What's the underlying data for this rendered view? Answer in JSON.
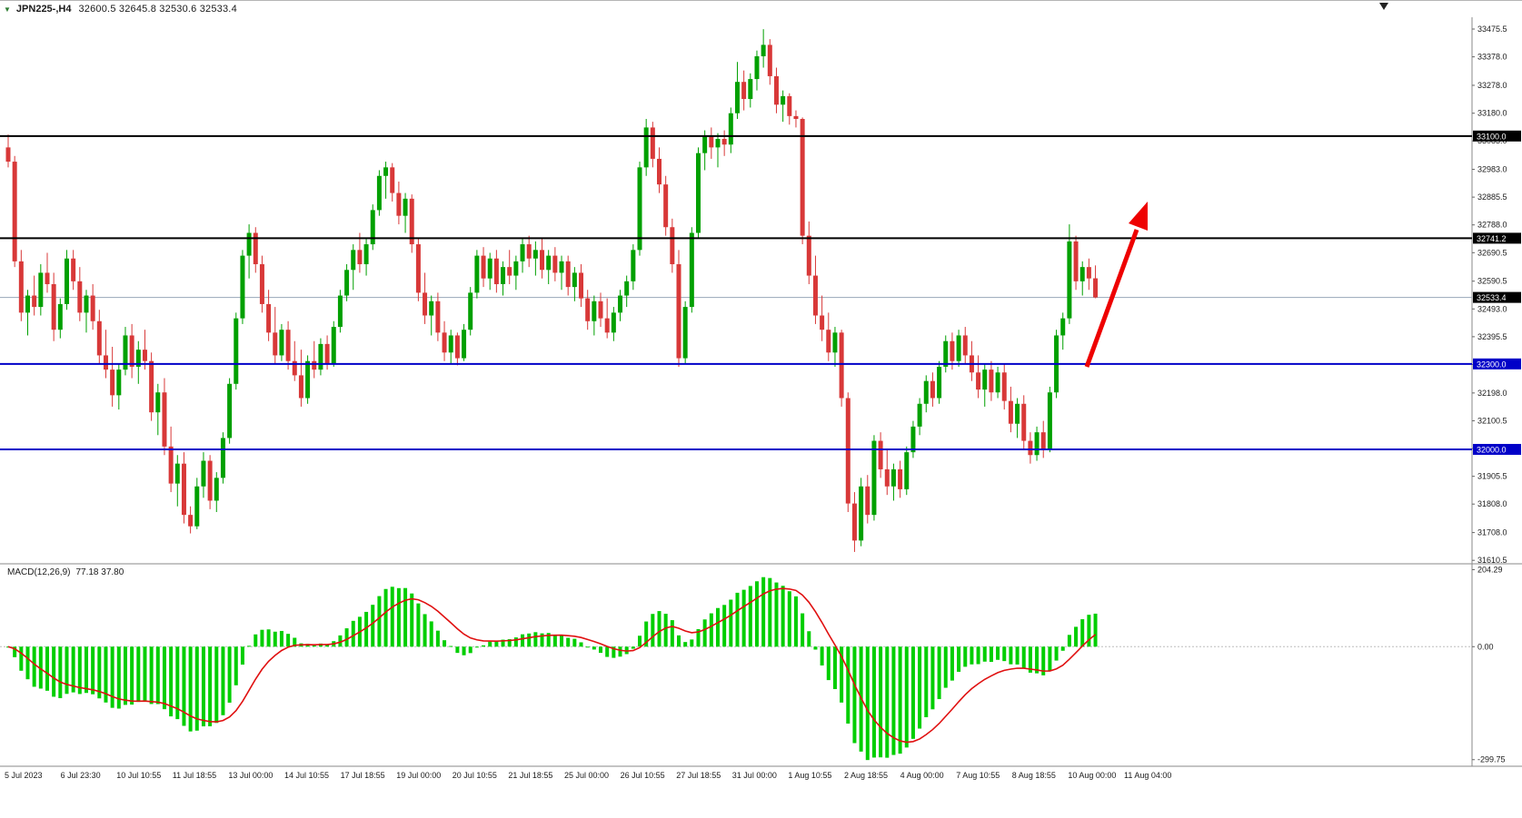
{
  "header": {
    "arrow": "▼",
    "title": "JPN225-,H4",
    "ohlc": "32600.5 32645.8 32530.6 32533.4"
  },
  "colors": {
    "up": "#00A000",
    "down": "#D83838",
    "hist": "#00CE00",
    "signal": "#E01010",
    "blue_line": "#0000C8",
    "black_line": "#000000",
    "bid_line": "#97A6B8",
    "axis_text": "#1a1a1a",
    "label_text": "#FFFFFF",
    "separator": "#8a8a8a"
  },
  "chart_data": {
    "type": "candlestick",
    "title": "JPN225-,H4",
    "indicator": "MACD(12,26,9)",
    "bid": {
      "price": 32533.4,
      "label": "32533.4"
    },
    "horizontal_lines": [
      {
        "price": 33100.0,
        "color": "#000000"
      },
      {
        "price": 32741.2,
        "color": "#000000"
      },
      {
        "price": 32300.0,
        "color": "#0000C8"
      },
      {
        "price": 32000.0,
        "color": "#0000C8"
      }
    ],
    "price_line_labels": [
      {
        "text": "33100.0",
        "price": 33100.0,
        "bg": "#000000"
      },
      {
        "text": "32741.2",
        "price": 32741.2,
        "bg": "#000000"
      },
      {
        "text": "32533.4",
        "price": 32533.4,
        "bg": "#000000"
      },
      {
        "text": "32300.0",
        "price": 32300.0,
        "bg": "#0000C8"
      },
      {
        "text": "32000.0",
        "price": 32000.0,
        "bg": "#0000C8"
      }
    ],
    "price_axis": {
      "tick_labels": [
        "33475.5",
        "33378.0",
        "33278.0",
        "33180.0",
        "33083.0",
        "32983.0",
        "32885.5",
        "32788.0",
        "32690.5",
        "32590.5",
        "32493.0",
        "32395.5",
        "32298.0",
        "32198.0",
        "32100.5",
        "32003.0",
        "31905.5",
        "31808.0",
        "31708.0",
        "31610.5"
      ]
    },
    "x_axis": {
      "labels": [
        "5 Jul 2023",
        "6 Jul 23:30",
        "10 Jul 10:55",
        "11 Jul 18:55",
        "13 Jul 00:00",
        "14 Jul 10:55",
        "17 Jul 18:55",
        "19 Jul 00:00",
        "20 Jul 10:55",
        "21 Jul 18:55",
        "25 Jul 00:00",
        "26 Jul 10:55",
        "27 Jul 18:55",
        "31 Jul 00:00",
        "1 Aug 10:55",
        "2 Aug 18:55",
        "4 Aug 00:00",
        "7 Aug 10:55",
        "8 Aug 18:55",
        "10 Aug 00:00",
        "11 Aug 04:00"
      ]
    },
    "macd": {
      "label": "MACD(12,26,9)",
      "current_values": "77.18 37.80",
      "axis_labels": [
        {
          "text": "204.29",
          "value": 204.29
        },
        {
          "text": "0.00",
          "value": 0
        },
        {
          "text": "-299.75",
          "value": -299.75
        }
      ]
    },
    "annotation": {
      "type": "arrow",
      "direction": "up-right",
      "color": "#EE0000"
    },
    "candles": [
      [
        33060,
        33105,
        32990,
        33010
      ],
      [
        33010,
        33030,
        32640,
        32660
      ],
      [
        32660,
        32700,
        32450,
        32480
      ],
      [
        32480,
        32560,
        32400,
        32540
      ],
      [
        32540,
        32610,
        32470,
        32500
      ],
      [
        32500,
        32650,
        32470,
        32620
      ],
      [
        32620,
        32690,
        32550,
        32580
      ],
      [
        32580,
        32620,
        32380,
        32420
      ],
      [
        32420,
        32530,
        32390,
        32510
      ],
      [
        32510,
        32700,
        32490,
        32670
      ],
      [
        32670,
        32700,
        32560,
        32590
      ],
      [
        32590,
        32640,
        32450,
        32480
      ],
      [
        32480,
        32560,
        32410,
        32540
      ],
      [
        32540,
        32580,
        32420,
        32450
      ],
      [
        32450,
        32490,
        32300,
        32330
      ],
      [
        32330,
        32420,
        32250,
        32280
      ],
      [
        32280,
        32360,
        32150,
        32190
      ],
      [
        32190,
        32300,
        32140,
        32280
      ],
      [
        32280,
        32430,
        32260,
        32400
      ],
      [
        32400,
        32440,
        32250,
        32290
      ],
      [
        32290,
        32380,
        32230,
        32350
      ],
      [
        32350,
        32420,
        32280,
        32310
      ],
      [
        32310,
        32340,
        32100,
        32130
      ],
      [
        32130,
        32230,
        32050,
        32200
      ],
      [
        32200,
        32250,
        31980,
        32010
      ],
      [
        32010,
        32080,
        31850,
        31880
      ],
      [
        31880,
        31980,
        31800,
        31950
      ],
      [
        31950,
        31990,
        31740,
        31770
      ],
      [
        31770,
        31800,
        31705,
        31730
      ],
      [
        31730,
        31900,
        31720,
        31870
      ],
      [
        31870,
        31990,
        31830,
        31960
      ],
      [
        31960,
        31980,
        31790,
        31820
      ],
      [
        31820,
        31920,
        31780,
        31900
      ],
      [
        31900,
        32060,
        31880,
        32040
      ],
      [
        32040,
        32250,
        32020,
        32230
      ],
      [
        32230,
        32480,
        32210,
        32460
      ],
      [
        32460,
        32700,
        32440,
        32680
      ],
      [
        32680,
        32790,
        32600,
        32760
      ],
      [
        32760,
        32780,
        32620,
        32650
      ],
      [
        32650,
        32680,
        32480,
        32510
      ],
      [
        32510,
        32560,
        32380,
        32410
      ],
      [
        32410,
        32500,
        32300,
        32330
      ],
      [
        32330,
        32440,
        32310,
        32420
      ],
      [
        32420,
        32450,
        32280,
        32310
      ],
      [
        32310,
        32380,
        32240,
        32260
      ],
      [
        32260,
        32350,
        32150,
        32180
      ],
      [
        32180,
        32330,
        32160,
        32310
      ],
      [
        32310,
        32380,
        32250,
        32280
      ],
      [
        32280,
        32390,
        32260,
        32370
      ],
      [
        32370,
        32400,
        32280,
        32300
      ],
      [
        32300,
        32450,
        32290,
        32430
      ],
      [
        32430,
        32560,
        32410,
        32540
      ],
      [
        32540,
        32650,
        32520,
        32630
      ],
      [
        32630,
        32720,
        32560,
        32700
      ],
      [
        32700,
        32760,
        32620,
        32650
      ],
      [
        32650,
        32740,
        32610,
        32720
      ],
      [
        32720,
        32860,
        32700,
        32840
      ],
      [
        32840,
        32980,
        32820,
        32960
      ],
      [
        32960,
        33010,
        32880,
        32990
      ],
      [
        32990,
        33005,
        32870,
        32900
      ],
      [
        32900,
        32940,
        32790,
        32820
      ],
      [
        32820,
        32900,
        32760,
        32880
      ],
      [
        32880,
        32895,
        32690,
        32720
      ],
      [
        32720,
        32740,
        32520,
        32550
      ],
      [
        32550,
        32620,
        32440,
        32470
      ],
      [
        32470,
        32540,
        32400,
        32520
      ],
      [
        32520,
        32550,
        32380,
        32410
      ],
      [
        32410,
        32450,
        32310,
        32340
      ],
      [
        32340,
        32420,
        32300,
        32400
      ],
      [
        32400,
        32410,
        32295,
        32320
      ],
      [
        32320,
        32440,
        32310,
        32420
      ],
      [
        32420,
        32570,
        32400,
        32550
      ],
      [
        32550,
        32700,
        32530,
        32680
      ],
      [
        32680,
        32710,
        32570,
        32600
      ],
      [
        32600,
        32690,
        32560,
        32670
      ],
      [
        32670,
        32700,
        32550,
        32580
      ],
      [
        32580,
        32660,
        32540,
        32640
      ],
      [
        32640,
        32700,
        32580,
        32610
      ],
      [
        32610,
        32680,
        32560,
        32660
      ],
      [
        32660,
        32740,
        32620,
        32720
      ],
      [
        32720,
        32750,
        32640,
        32670
      ],
      [
        32670,
        32730,
        32610,
        32700
      ],
      [
        32700,
        32740,
        32600,
        32630
      ],
      [
        32630,
        32700,
        32580,
        32680
      ],
      [
        32680,
        32710,
        32590,
        32620
      ],
      [
        32620,
        32680,
        32560,
        32660
      ],
      [
        32660,
        32680,
        32540,
        32570
      ],
      [
        32570,
        32640,
        32520,
        32620
      ],
      [
        32620,
        32650,
        32500,
        32530
      ],
      [
        32530,
        32560,
        32420,
        32450
      ],
      [
        32450,
        32540,
        32400,
        32520
      ],
      [
        32520,
        32550,
        32430,
        32460
      ],
      [
        32460,
        32530,
        32390,
        32410
      ],
      [
        32410,
        32500,
        32380,
        32480
      ],
      [
        32480,
        32560,
        32450,
        32540
      ],
      [
        32540,
        32610,
        32500,
        32590
      ],
      [
        32590,
        32720,
        32560,
        32700
      ],
      [
        32700,
        33010,
        32680,
        32990
      ],
      [
        32990,
        33160,
        32960,
        33130
      ],
      [
        33130,
        33150,
        32990,
        33020
      ],
      [
        33020,
        33060,
        32900,
        32930
      ],
      [
        32930,
        32960,
        32750,
        32780
      ],
      [
        32780,
        32810,
        32620,
        32650
      ],
      [
        32650,
        32700,
        32290,
        32320
      ],
      [
        32320,
        32520,
        32300,
        32500
      ],
      [
        32500,
        32780,
        32480,
        32760
      ],
      [
        32760,
        33060,
        32740,
        33040
      ],
      [
        33040,
        33120,
        32980,
        33100
      ],
      [
        33100,
        33130,
        33020,
        33060
      ],
      [
        33060,
        33110,
        32990,
        33090
      ],
      [
        33090,
        33120,
        33030,
        33070
      ],
      [
        33070,
        33200,
        33040,
        33180
      ],
      [
        33180,
        33360,
        33160,
        33290
      ],
      [
        33290,
        33330,
        33190,
        33230
      ],
      [
        33230,
        33320,
        33200,
        33300
      ],
      [
        33300,
        33400,
        33260,
        33380
      ],
      [
        33380,
        33475,
        33340,
        33420
      ],
      [
        33420,
        33440,
        33280,
        33310
      ],
      [
        33310,
        33340,
        33180,
        33210
      ],
      [
        33210,
        33260,
        33150,
        33240
      ],
      [
        33240,
        33250,
        33140,
        33170
      ],
      [
        33170,
        33190,
        33130,
        33160
      ],
      [
        33160,
        33165,
        32720,
        32750
      ],
      [
        32750,
        32800,
        32580,
        32610
      ],
      [
        32610,
        32680,
        32440,
        32470
      ],
      [
        32470,
        32540,
        32380,
        32420
      ],
      [
        32420,
        32480,
        32310,
        32340
      ],
      [
        32340,
        32430,
        32290,
        32410
      ],
      [
        32410,
        32420,
        32150,
        32180
      ],
      [
        32180,
        32200,
        31780,
        31810
      ],
      [
        31810,
        31850,
        31640,
        31680
      ],
      [
        31680,
        31900,
        31660,
        31870
      ],
      [
        31870,
        31910,
        31740,
        31770
      ],
      [
        31770,
        32050,
        31750,
        32030
      ],
      [
        32030,
        32060,
        31900,
        31930
      ],
      [
        31930,
        32000,
        31840,
        31870
      ],
      [
        31870,
        31950,
        31820,
        31930
      ],
      [
        31930,
        31960,
        31830,
        31860
      ],
      [
        31860,
        32010,
        31840,
        31990
      ],
      [
        31990,
        32100,
        31970,
        32080
      ],
      [
        32080,
        32180,
        32050,
        32160
      ],
      [
        32160,
        32260,
        32130,
        32240
      ],
      [
        32240,
        32270,
        32150,
        32180
      ],
      [
        32180,
        32310,
        32160,
        32290
      ],
      [
        32290,
        32400,
        32270,
        32380
      ],
      [
        32380,
        32410,
        32280,
        32310
      ],
      [
        32310,
        32420,
        32290,
        32400
      ],
      [
        32400,
        32430,
        32300,
        32330
      ],
      [
        32330,
        32380,
        32240,
        32270
      ],
      [
        32270,
        32330,
        32180,
        32210
      ],
      [
        32210,
        32300,
        32150,
        32280
      ],
      [
        32280,
        32310,
        32170,
        32200
      ],
      [
        32200,
        32290,
        32180,
        32270
      ],
      [
        32270,
        32300,
        32140,
        32170
      ],
      [
        32170,
        32220,
        32060,
        32090
      ],
      [
        32090,
        32180,
        32040,
        32160
      ],
      [
        32160,
        32190,
        32000,
        32030
      ],
      [
        32030,
        32060,
        31950,
        31980
      ],
      [
        31980,
        32080,
        31960,
        32060
      ],
      [
        32060,
        32100,
        31970,
        32000
      ],
      [
        32000,
        32220,
        31990,
        32200
      ],
      [
        32200,
        32420,
        32180,
        32400
      ],
      [
        32400,
        32480,
        32350,
        32460
      ],
      [
        32460,
        32790,
        32440,
        32730
      ],
      [
        32730,
        32750,
        32560,
        32590
      ],
      [
        32590,
        32660,
        32540,
        32640
      ],
      [
        32640,
        32670,
        32560,
        32600
      ],
      [
        32600.5,
        32645.8,
        32530.6,
        32533.4
      ]
    ]
  }
}
